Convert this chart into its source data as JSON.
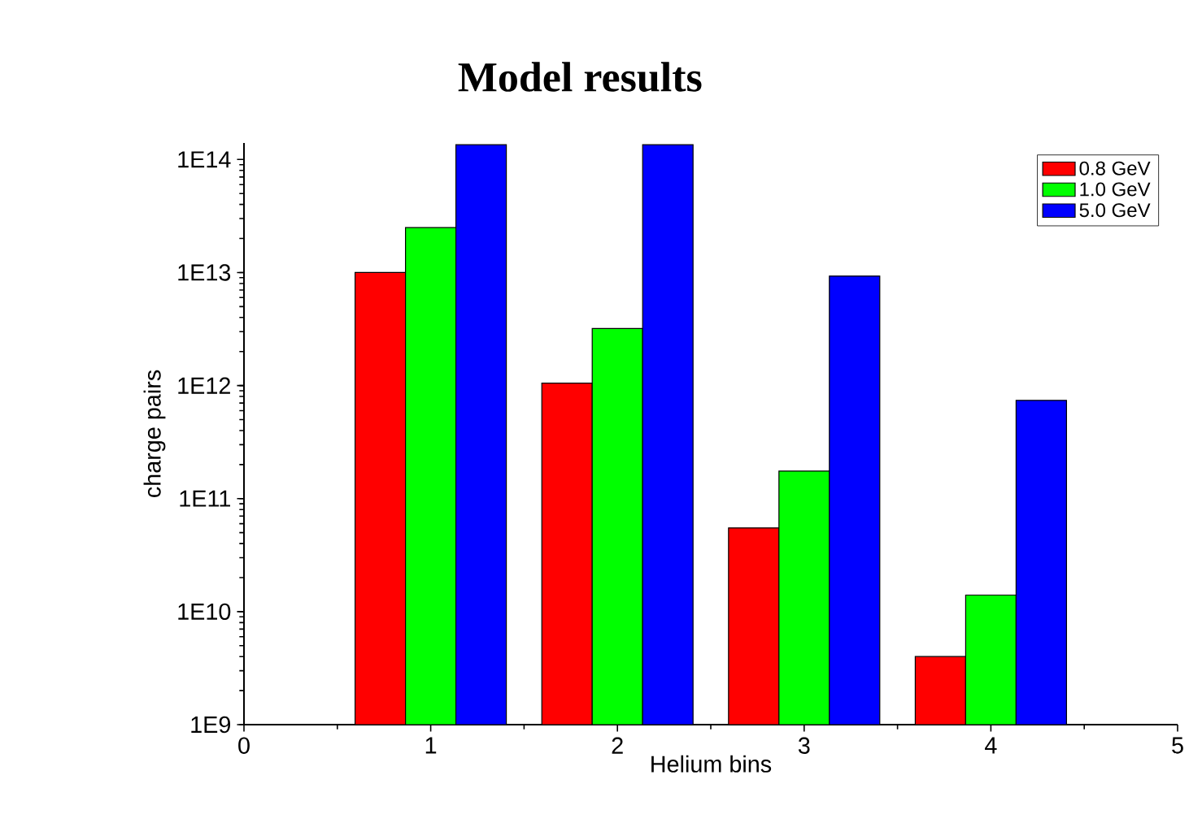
{
  "chart_data": {
    "type": "bar",
    "title": "Model results",
    "xlabel": "Helium bins",
    "ylabel": "charge pairs",
    "x": [
      1,
      2,
      3,
      4
    ],
    "series": [
      {
        "name": "0.8 GeV",
        "color": "#ff0000",
        "values": [
          10000000000000.0,
          1050000000000.0,
          55000000000.0,
          4000000000.0
        ]
      },
      {
        "name": "1.0 GeV",
        "color": "#00ff00",
        "values": [
          25000000000000.0,
          3200000000000.0,
          175000000000.0,
          14000000000.0
        ]
      },
      {
        "name": "5.0 GeV",
        "color": "#0000ff",
        "values": [
          135000000000000.0,
          135000000000000.0,
          9300000000000.0,
          740000000000.0
        ]
      }
    ],
    "log": "y",
    "xlim": [
      0,
      5
    ],
    "ylim": [
      1000000000.0,
      140000000000000.0
    ],
    "xticks": [
      0,
      1,
      2,
      3,
      4,
      5
    ],
    "yticks": [
      {
        "value": 1000000000.0,
        "label": "1E9"
      },
      {
        "value": 10000000000.0,
        "label": "1E10"
      },
      {
        "value": 100000000000.0,
        "label": "1E11"
      },
      {
        "value": 1000000000000.0,
        "label": "1E12"
      },
      {
        "value": 10000000000000.0,
        "label": "1E13"
      },
      {
        "value": 100000000000000.0,
        "label": "1E14"
      }
    ],
    "legend": "top right",
    "grid": false
  }
}
